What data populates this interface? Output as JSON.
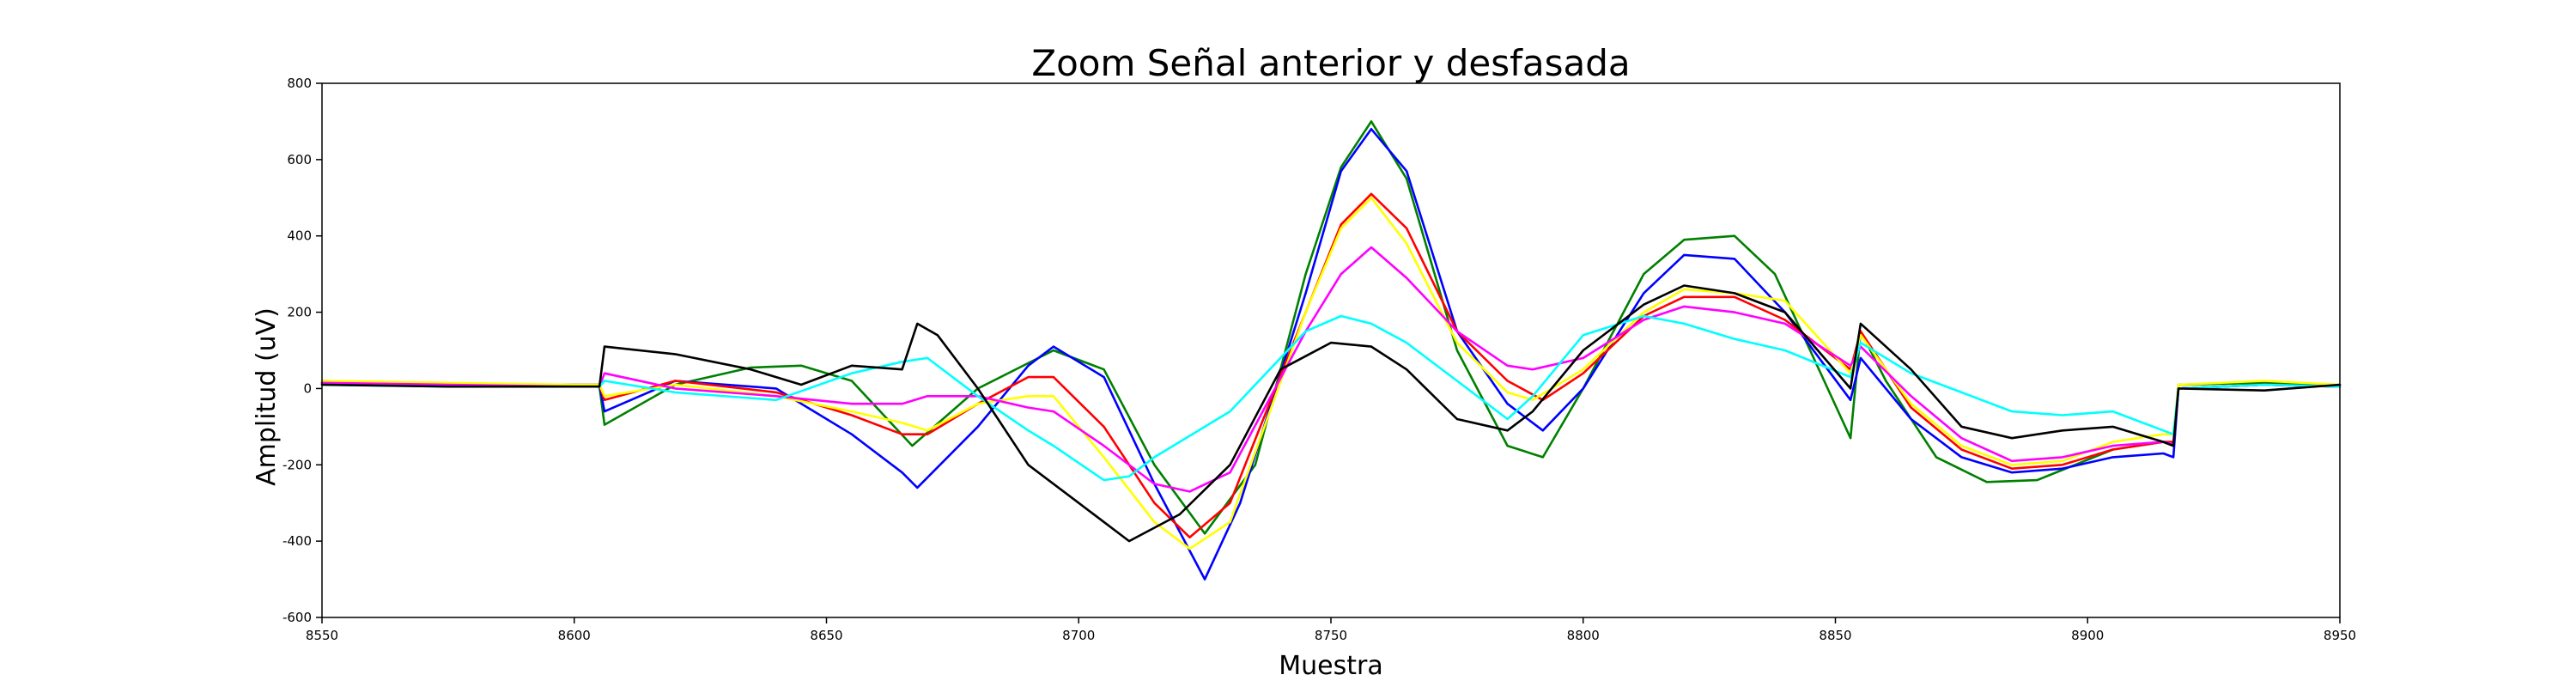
{
  "chart_data": {
    "type": "line",
    "title": "Zoom Señal anterior y desfasada",
    "xlabel": "Muestra",
    "ylabel": "Amplitud (uV)",
    "xlim": [
      8550,
      8950
    ],
    "ylim": [
      -600,
      800
    ],
    "xticks": [
      8550,
      8600,
      8650,
      8700,
      8750,
      8800,
      8850,
      8900,
      8950
    ],
    "yticks": [
      -600,
      -400,
      -200,
      0,
      200,
      400,
      600,
      800
    ],
    "grid": false,
    "legend": "none",
    "series": [
      {
        "color": "#008000",
        "points": [
          [
            8550,
            20
          ],
          [
            8575,
            10
          ],
          [
            8600,
            5
          ],
          [
            8605,
            5
          ],
          [
            8606,
            -95
          ],
          [
            8620,
            10
          ],
          [
            8635,
            55
          ],
          [
            8645,
            60
          ],
          [
            8655,
            20
          ],
          [
            8667,
            -150
          ],
          [
            8680,
            0
          ],
          [
            8695,
            100
          ],
          [
            8705,
            50
          ],
          [
            8715,
            -200
          ],
          [
            8725,
            -380
          ],
          [
            8735,
            -200
          ],
          [
            8745,
            300
          ],
          [
            8752,
            580
          ],
          [
            8758,
            700
          ],
          [
            8765,
            550
          ],
          [
            8775,
            100
          ],
          [
            8785,
            -150
          ],
          [
            8792,
            -180
          ],
          [
            8800,
            0
          ],
          [
            8812,
            300
          ],
          [
            8820,
            390
          ],
          [
            8830,
            400
          ],
          [
            8838,
            300
          ],
          [
            8845,
            100
          ],
          [
            8853,
            -130
          ],
          [
            8855,
            150
          ],
          [
            8860,
            20
          ],
          [
            8870,
            -180
          ],
          [
            8880,
            -245
          ],
          [
            8890,
            -240
          ],
          [
            8905,
            -160
          ],
          [
            8915,
            -140
          ],
          [
            8917,
            -150
          ],
          [
            8918,
            10
          ],
          [
            8935,
            15
          ],
          [
            8950,
            10
          ]
        ]
      },
      {
        "color": "#0000ff",
        "points": [
          [
            8550,
            15
          ],
          [
            8575,
            10
          ],
          [
            8600,
            10
          ],
          [
            8605,
            10
          ],
          [
            8606,
            -60
          ],
          [
            8620,
            20
          ],
          [
            8640,
            0
          ],
          [
            8655,
            -120
          ],
          [
            8665,
            -220
          ],
          [
            8668,
            -260
          ],
          [
            8680,
            -100
          ],
          [
            8690,
            60
          ],
          [
            8695,
            110
          ],
          [
            8705,
            30
          ],
          [
            8715,
            -250
          ],
          [
            8725,
            -500
          ],
          [
            8732,
            -300
          ],
          [
            8745,
            250
          ],
          [
            8752,
            570
          ],
          [
            8758,
            680
          ],
          [
            8765,
            570
          ],
          [
            8775,
            150
          ],
          [
            8785,
            -40
          ],
          [
            8792,
            -110
          ],
          [
            8800,
            0
          ],
          [
            8812,
            250
          ],
          [
            8820,
            350
          ],
          [
            8830,
            340
          ],
          [
            8840,
            200
          ],
          [
            8853,
            -30
          ],
          [
            8855,
            80
          ],
          [
            8865,
            -80
          ],
          [
            8875,
            -180
          ],
          [
            8885,
            -220
          ],
          [
            8895,
            -210
          ],
          [
            8905,
            -180
          ],
          [
            8915,
            -170
          ],
          [
            8917,
            -180
          ],
          [
            8918,
            0
          ],
          [
            8935,
            10
          ],
          [
            8950,
            5
          ]
        ]
      },
      {
        "color": "#ff0000",
        "points": [
          [
            8550,
            15
          ],
          [
            8575,
            10
          ],
          [
            8600,
            10
          ],
          [
            8605,
            10
          ],
          [
            8606,
            -30
          ],
          [
            8620,
            20
          ],
          [
            8640,
            -10
          ],
          [
            8655,
            -70
          ],
          [
            8665,
            -120
          ],
          [
            8670,
            -120
          ],
          [
            8680,
            -40
          ],
          [
            8690,
            30
          ],
          [
            8695,
            30
          ],
          [
            8705,
            -100
          ],
          [
            8715,
            -300
          ],
          [
            8722,
            -390
          ],
          [
            8730,
            -300
          ],
          [
            8745,
            200
          ],
          [
            8752,
            430
          ],
          [
            8758,
            510
          ],
          [
            8765,
            420
          ],
          [
            8775,
            150
          ],
          [
            8785,
            20
          ],
          [
            8792,
            -30
          ],
          [
            8800,
            40
          ],
          [
            8812,
            190
          ],
          [
            8820,
            240
          ],
          [
            8830,
            240
          ],
          [
            8840,
            180
          ],
          [
            8853,
            50
          ],
          [
            8855,
            150
          ],
          [
            8865,
            -50
          ],
          [
            8875,
            -160
          ],
          [
            8885,
            -210
          ],
          [
            8895,
            -200
          ],
          [
            8905,
            -160
          ],
          [
            8915,
            -140
          ],
          [
            8917,
            -140
          ],
          [
            8918,
            0
          ],
          [
            8935,
            10
          ],
          [
            8950,
            5
          ]
        ]
      },
      {
        "color": "#ffff00",
        "points": [
          [
            8550,
            20
          ],
          [
            8575,
            15
          ],
          [
            8600,
            10
          ],
          [
            8605,
            10
          ],
          [
            8606,
            -20
          ],
          [
            8620,
            10
          ],
          [
            8640,
            -20
          ],
          [
            8655,
            -60
          ],
          [
            8665,
            -90
          ],
          [
            8670,
            -110
          ],
          [
            8680,
            -40
          ],
          [
            8690,
            -20
          ],
          [
            8695,
            -20
          ],
          [
            8705,
            -180
          ],
          [
            8715,
            -350
          ],
          [
            8722,
            -420
          ],
          [
            8730,
            -350
          ],
          [
            8745,
            200
          ],
          [
            8752,
            420
          ],
          [
            8758,
            500
          ],
          [
            8765,
            380
          ],
          [
            8775,
            120
          ],
          [
            8785,
            -10
          ],
          [
            8790,
            -30
          ],
          [
            8800,
            50
          ],
          [
            8812,
            200
          ],
          [
            8820,
            260
          ],
          [
            8830,
            250
          ],
          [
            8840,
            230
          ],
          [
            8853,
            40
          ],
          [
            8855,
            140
          ],
          [
            8865,
            -40
          ],
          [
            8875,
            -150
          ],
          [
            8885,
            -200
          ],
          [
            8895,
            -190
          ],
          [
            8905,
            -140
          ],
          [
            8915,
            -120
          ],
          [
            8917,
            -120
          ],
          [
            8918,
            10
          ],
          [
            8935,
            20
          ],
          [
            8950,
            10
          ]
        ]
      },
      {
        "color": "#ff00ff",
        "points": [
          [
            8550,
            15
          ],
          [
            8575,
            10
          ],
          [
            8600,
            5
          ],
          [
            8605,
            5
          ],
          [
            8606,
            40
          ],
          [
            8620,
            0
          ],
          [
            8640,
            -20
          ],
          [
            8655,
            -40
          ],
          [
            8665,
            -40
          ],
          [
            8670,
            -20
          ],
          [
            8680,
            -20
          ],
          [
            8690,
            -50
          ],
          [
            8695,
            -60
          ],
          [
            8705,
            -150
          ],
          [
            8715,
            -250
          ],
          [
            8722,
            -270
          ],
          [
            8730,
            -220
          ],
          [
            8745,
            150
          ],
          [
            8752,
            300
          ],
          [
            8758,
            370
          ],
          [
            8765,
            290
          ],
          [
            8775,
            150
          ],
          [
            8785,
            60
          ],
          [
            8790,
            50
          ],
          [
            8800,
            80
          ],
          [
            8812,
            180
          ],
          [
            8820,
            215
          ],
          [
            8830,
            200
          ],
          [
            8840,
            170
          ],
          [
            8853,
            60
          ],
          [
            8855,
            110
          ],
          [
            8865,
            -20
          ],
          [
            8875,
            -130
          ],
          [
            8885,
            -190
          ],
          [
            8895,
            -180
          ],
          [
            8905,
            -150
          ],
          [
            8915,
            -140
          ],
          [
            8917,
            -145
          ],
          [
            8918,
            0
          ],
          [
            8935,
            10
          ],
          [
            8950,
            5
          ]
        ]
      },
      {
        "color": "#00ffff",
        "points": [
          [
            8550,
            10
          ],
          [
            8575,
            5
          ],
          [
            8600,
            5
          ],
          [
            8605,
            5
          ],
          [
            8606,
            20
          ],
          [
            8620,
            -10
          ],
          [
            8640,
            -30
          ],
          [
            8655,
            40
          ],
          [
            8665,
            70
          ],
          [
            8670,
            80
          ],
          [
            8680,
            -20
          ],
          [
            8690,
            -110
          ],
          [
            8695,
            -150
          ],
          [
            8705,
            -240
          ],
          [
            8710,
            -230
          ],
          [
            8715,
            -180
          ],
          [
            8730,
            -60
          ],
          [
            8745,
            150
          ],
          [
            8752,
            190
          ],
          [
            8758,
            170
          ],
          [
            8765,
            120
          ],
          [
            8775,
            20
          ],
          [
            8785,
            -80
          ],
          [
            8790,
            -20
          ],
          [
            8800,
            140
          ],
          [
            8812,
            190
          ],
          [
            8820,
            170
          ],
          [
            8830,
            130
          ],
          [
            8840,
            100
          ],
          [
            8853,
            30
          ],
          [
            8855,
            120
          ],
          [
            8865,
            40
          ],
          [
            8875,
            -10
          ],
          [
            8885,
            -60
          ],
          [
            8895,
            -70
          ],
          [
            8905,
            -60
          ],
          [
            8915,
            -110
          ],
          [
            8917,
            -120
          ],
          [
            8918,
            0
          ],
          [
            8935,
            10
          ],
          [
            8950,
            5
          ]
        ]
      },
      {
        "color": "#000000",
        "points": [
          [
            8550,
            10
          ],
          [
            8575,
            5
          ],
          [
            8600,
            5
          ],
          [
            8605,
            5
          ],
          [
            8606,
            110
          ],
          [
            8620,
            90
          ],
          [
            8635,
            50
          ],
          [
            8645,
            10
          ],
          [
            8655,
            60
          ],
          [
            8665,
            50
          ],
          [
            8668,
            170
          ],
          [
            8672,
            140
          ],
          [
            8680,
            0
          ],
          [
            8690,
            -200
          ],
          [
            8700,
            -300
          ],
          [
            8710,
            -400
          ],
          [
            8720,
            -330
          ],
          [
            8730,
            -200
          ],
          [
            8740,
            50
          ],
          [
            8750,
            120
          ],
          [
            8758,
            110
          ],
          [
            8765,
            50
          ],
          [
            8775,
            -80
          ],
          [
            8785,
            -110
          ],
          [
            8790,
            -60
          ],
          [
            8800,
            100
          ],
          [
            8812,
            220
          ],
          [
            8820,
            270
          ],
          [
            8830,
            250
          ],
          [
            8840,
            200
          ],
          [
            8853,
            0
          ],
          [
            8855,
            170
          ],
          [
            8865,
            50
          ],
          [
            8875,
            -100
          ],
          [
            8885,
            -130
          ],
          [
            8895,
            -110
          ],
          [
            8905,
            -100
          ],
          [
            8915,
            -140
          ],
          [
            8917,
            -150
          ],
          [
            8918,
            0
          ],
          [
            8935,
            -5
          ],
          [
            8950,
            10
          ]
        ]
      }
    ]
  }
}
